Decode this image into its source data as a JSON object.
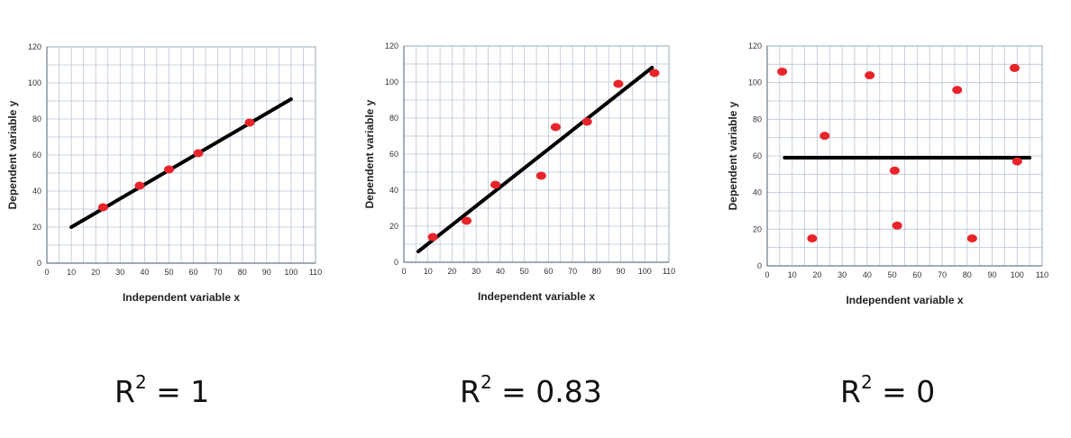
{
  "chart_data": [
    {
      "type": "scatter",
      "xlabel": "Independent variable x",
      "ylabel": "Dependent variable y",
      "xlim": [
        0,
        110
      ],
      "ylim": [
        0,
        120
      ],
      "x_ticks": [
        "0",
        "10",
        "20",
        "30",
        "40",
        "50",
        "60",
        "70",
        "80",
        "90",
        "100",
        "110"
      ],
      "y_ticks": [
        "0",
        "20",
        "40",
        "60",
        "80",
        "100",
        "120"
      ],
      "grid": true,
      "points": [
        {
          "x": 23,
          "y": 31
        },
        {
          "x": 38,
          "y": 43
        },
        {
          "x": 50,
          "y": 52
        },
        {
          "x": 62,
          "y": 61
        },
        {
          "x": 83,
          "y": 78
        }
      ],
      "fit_line": [
        {
          "x": 10,
          "y": 20
        },
        {
          "x": 100,
          "y": 91
        }
      ],
      "point_color": "#e8242a",
      "line_color": "#000000",
      "r2_label": "= 1"
    },
    {
      "type": "scatter",
      "xlabel": "Independent variable x",
      "ylabel": "Dependent variable y",
      "xlim": [
        0,
        110
      ],
      "ylim": [
        0,
        120
      ],
      "x_ticks": [
        "0",
        "10",
        "20",
        "30",
        "40",
        "50",
        "60",
        "70",
        "80",
        "90",
        "100",
        "110"
      ],
      "y_ticks": [
        "0",
        "20",
        "40",
        "60",
        "80",
        "100",
        "120"
      ],
      "grid": true,
      "points": [
        {
          "x": 12,
          "y": 14
        },
        {
          "x": 26,
          "y": 23
        },
        {
          "x": 38,
          "y": 43
        },
        {
          "x": 57,
          "y": 48
        },
        {
          "x": 63,
          "y": 75
        },
        {
          "x": 76,
          "y": 78
        },
        {
          "x": 89,
          "y": 99
        },
        {
          "x": 104,
          "y": 105
        }
      ],
      "fit_line": [
        {
          "x": 6,
          "y": 6
        },
        {
          "x": 103,
          "y": 108
        }
      ],
      "point_color": "#e8242a",
      "line_color": "#000000",
      "r2_label": "= 0.83"
    },
    {
      "type": "scatter",
      "xlabel": "Independent variable x",
      "ylabel": "Dependent variable y",
      "xlim": [
        0,
        110
      ],
      "ylim": [
        0,
        120
      ],
      "x_ticks": [
        "0",
        "10",
        "20",
        "30",
        "40",
        "50",
        "60",
        "70",
        "80",
        "90",
        "100",
        "110"
      ],
      "y_ticks": [
        "0",
        "20",
        "40",
        "60",
        "80",
        "100",
        "120"
      ],
      "grid": true,
      "points": [
        {
          "x": 6,
          "y": 106
        },
        {
          "x": 18,
          "y": 15
        },
        {
          "x": 23,
          "y": 71
        },
        {
          "x": 41,
          "y": 104
        },
        {
          "x": 51,
          "y": 52
        },
        {
          "x": 52,
          "y": 22
        },
        {
          "x": 76,
          "y": 96
        },
        {
          "x": 82,
          "y": 15
        },
        {
          "x": 99,
          "y": 108
        },
        {
          "x": 100,
          "y": 57
        }
      ],
      "fit_line": [
        {
          "x": 7,
          "y": 59
        },
        {
          "x": 105,
          "y": 59
        }
      ],
      "point_color": "#e8242a",
      "line_color": "#000000",
      "r2_label": "= 0"
    }
  ],
  "r2_symbol": "R",
  "r2_exponent": "2"
}
